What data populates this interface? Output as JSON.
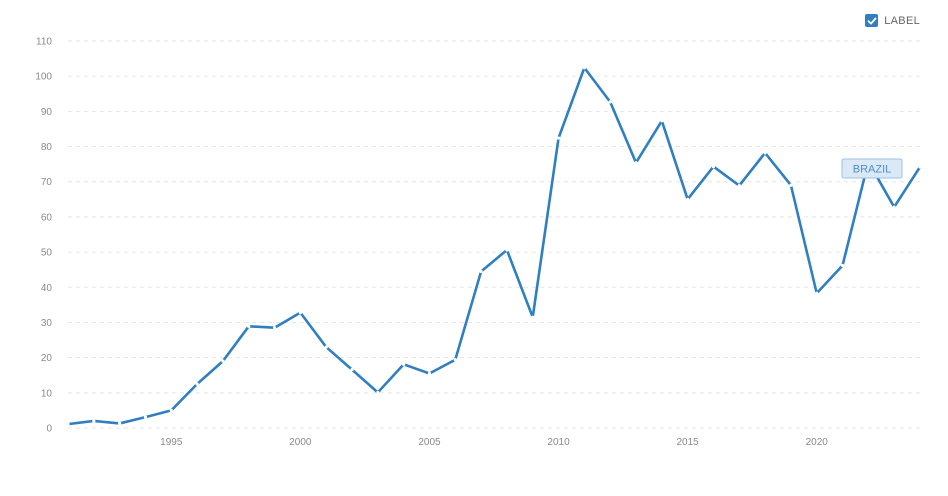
{
  "legend": {
    "label": "LABEL",
    "checked": true,
    "icon": "checkmark-icon",
    "color": "#2f7fc1"
  },
  "chart_data": {
    "type": "line",
    "title": "",
    "xlabel": "",
    "ylabel": "",
    "grid": true,
    "xlim": [
      1991,
      2024
    ],
    "ylim": [
      0,
      110
    ],
    "x_ticks": [
      "1995",
      "2000",
      "2005",
      "2010",
      "2015",
      "2020"
    ],
    "y_ticks": [
      "0",
      "10",
      "20",
      "30",
      "40",
      "50",
      "60",
      "70",
      "80",
      "90",
      "100",
      "110"
    ],
    "series": [
      {
        "name": "BRAZIL",
        "color": "#2f7fc1",
        "x": [
          1991,
          1992,
          1993,
          1994,
          1995,
          1996,
          1997,
          1998,
          1999,
          2000,
          2001,
          2002,
          2003,
          2004,
          2005,
          2006,
          2007,
          2008,
          2009,
          2010,
          2011,
          2012,
          2013,
          2014,
          2015,
          2016,
          2017,
          2018,
          2019,
          2020,
          2021,
          2022,
          2023,
          2024
        ],
        "y": [
          1.1,
          2.0,
          1.3,
          3.1,
          5.0,
          12.5,
          19.0,
          28.9,
          28.5,
          32.8,
          23.0,
          16.6,
          10.1,
          18.1,
          15.5,
          19.4,
          44.5,
          50.6,
          31.5,
          82.4,
          102.4,
          92.7,
          75.4,
          87.3,
          65.0,
          74.3,
          68.9,
          78.2,
          69.0,
          38.3,
          46.2,
          75.7,
          62.8,
          74.2
        ]
      }
    ]
  }
}
